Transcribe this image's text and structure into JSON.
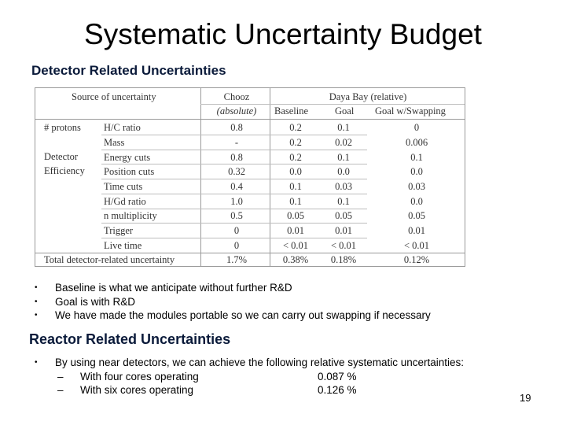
{
  "title": "Systematic Uncertainty Budget",
  "detector_heading": "Detector Related Uncertainties",
  "table": {
    "h_source": "Source of uncertainty",
    "h_chooz_1": "Chooz",
    "h_chooz_2": "(absolute)",
    "h_daya": "Daya Bay (relative)",
    "h_baseline": "Baseline",
    "h_goal": "Goal",
    "h_goal_swap": "Goal w/Swapping",
    "group_protons": "# protons",
    "group_detector": "Detector",
    "group_efficiency": "Efficiency",
    "rows": [
      {
        "item": "H/C ratio",
        "chooz": "0.8",
        "baseline": "0.2",
        "goal": "0.1",
        "swap": "0"
      },
      {
        "item": "Mass",
        "chooz": "-",
        "baseline": "0.2",
        "goal": "0.02",
        "swap": "0.006"
      },
      {
        "item": "Energy cuts",
        "chooz": "0.8",
        "baseline": "0.2",
        "goal": "0.1",
        "swap": "0.1"
      },
      {
        "item": "Position cuts",
        "chooz": "0.32",
        "baseline": "0.0",
        "goal": "0.0",
        "swap": "0.0"
      },
      {
        "item": "Time cuts",
        "chooz": "0.4",
        "baseline": "0.1",
        "goal": "0.03",
        "swap": "0.03"
      },
      {
        "item": "H/Gd ratio",
        "chooz": "1.0",
        "baseline": "0.1",
        "goal": "0.1",
        "swap": "0.0"
      },
      {
        "item": "n multiplicity",
        "chooz": "0.5",
        "baseline": "0.05",
        "goal": "0.05",
        "swap": "0.05"
      },
      {
        "item": "Trigger",
        "chooz": "0",
        "baseline": "0.01",
        "goal": "0.01",
        "swap": "0.01"
      },
      {
        "item": "Live time",
        "chooz": "0",
        "baseline": "< 0.01",
        "goal": "< 0.01",
        "swap": "< 0.01"
      }
    ],
    "total": {
      "label": "Total detector-related uncertainty",
      "chooz": "1.7%",
      "baseline": "0.38%",
      "goal": "0.18%",
      "swap": "0.12%"
    }
  },
  "bullets": [
    "Baseline is what we anticipate without further R&D",
    "Goal is with R&D",
    "We have made the modules portable so we can carry out swapping if necessary"
  ],
  "reactor_heading": "Reactor Related Uncertainties",
  "reactor_bullet": "By using near detectors, we can achieve the following relative systematic uncertainties:",
  "reactor_items": [
    {
      "label": "With four cores operating",
      "value": "0.087 %"
    },
    {
      "label": "With six cores operating",
      "value": "0.126 %"
    }
  ],
  "bullet_char": "•",
  "dash_char": "–",
  "page_number": "19"
}
